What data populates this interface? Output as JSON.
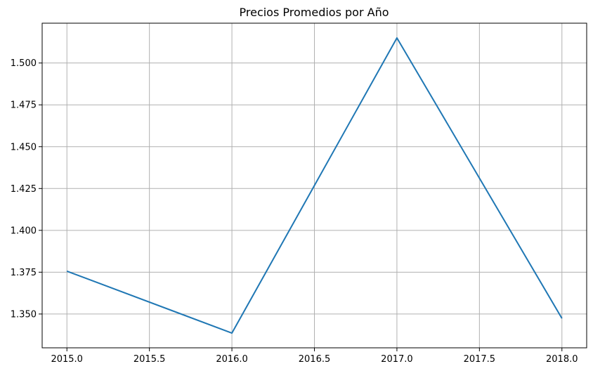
{
  "chart_data": {
    "type": "line",
    "title": "Precios Promedios por Año",
    "xlabel": "",
    "ylabel": "",
    "x": [
      2015.0,
      2016.0,
      2017.0,
      2018.0
    ],
    "series": [
      {
        "values": [
          1.3756,
          1.3386,
          1.515,
          1.3474
        ],
        "color": "#1f77b4"
      }
    ],
    "xlim": [
      2014.85,
      2018.15
    ],
    "ylim": [
      1.3298,
      1.5238
    ],
    "xticks": [
      2015.0,
      2015.5,
      2016.0,
      2016.5,
      2017.0,
      2017.5,
      2018.0
    ],
    "xtick_labels": [
      "2015.0",
      "2015.5",
      "2016.0",
      "2016.5",
      "2017.0",
      "2017.5",
      "2018.0"
    ],
    "yticks": [
      1.35,
      1.375,
      1.4,
      1.425,
      1.45,
      1.475,
      1.5
    ],
    "ytick_labels": [
      "1.350",
      "1.375",
      "1.400",
      "1.425",
      "1.450",
      "1.475",
      "1.500"
    ],
    "grid": true,
    "legend": "none",
    "colors": {
      "grid": "#b0b0b0",
      "axes": "#000000",
      "background": "#ffffff"
    }
  }
}
